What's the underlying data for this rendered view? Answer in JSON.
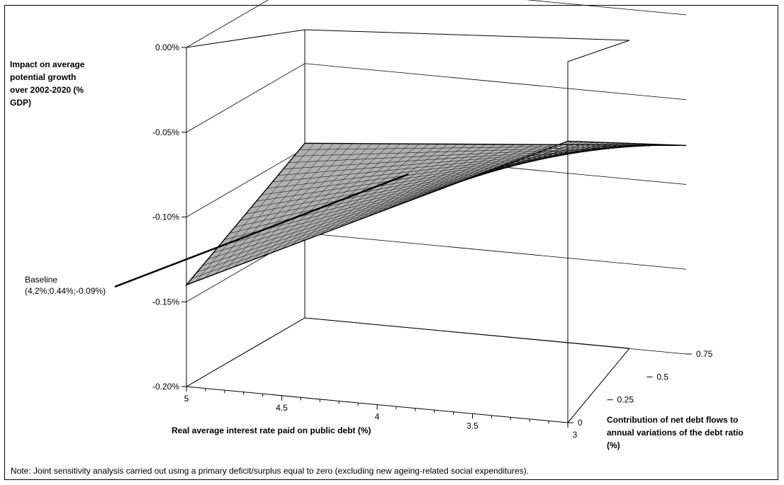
{
  "chart_data": {
    "type": "surface",
    "z_axis": {
      "title_lines": [
        "Impact on average",
        "potential growth",
        "over 2002-2020 (%",
        "GDP)"
      ],
      "ticks": [
        "0.00%",
        "-0.05%",
        "-0.10%",
        "-0.15%",
        "-0.20%"
      ],
      "zlim": [
        -0.2,
        0.0
      ]
    },
    "x_axis": {
      "title": "Real average interest rate paid on public debt (%)",
      "ticks": [
        "5",
        "4.5",
        "4",
        "3.5",
        "3"
      ],
      "xlim": [
        5,
        3
      ]
    },
    "y_axis": {
      "title_lines": [
        "Contribution of net debt flows to",
        "annual variations of the debt ratio",
        "(%)"
      ],
      "ticks": [
        "0",
        "0.25",
        "0.5",
        "0.75"
      ],
      "ylim": [
        0,
        0.75
      ]
    },
    "surface_corners": [
      {
        "interest_rate": 5,
        "debt_flow_contribution": 0,
        "impact": -0.14
      },
      {
        "interest_rate": 3,
        "debt_flow_contribution": 0,
        "impact": -0.034
      },
      {
        "interest_rate": 3,
        "debt_flow_contribution": 0.75,
        "impact": -0.077
      },
      {
        "interest_rate": 5,
        "debt_flow_contribution": 0.75,
        "impact": -0.097
      }
    ],
    "annotation": {
      "lines": [
        "Baseline",
        "(4,2%;0.44%;-0.09%)"
      ],
      "point": {
        "interest_rate": 4.2,
        "debt_flow_contribution": 0.44,
        "impact": -0.09
      }
    }
  },
  "note": "Note: Joint sensitivity analysis carried out using a primary deficit/surplus equal to zero (excluding new ageing-related social expenditures)."
}
